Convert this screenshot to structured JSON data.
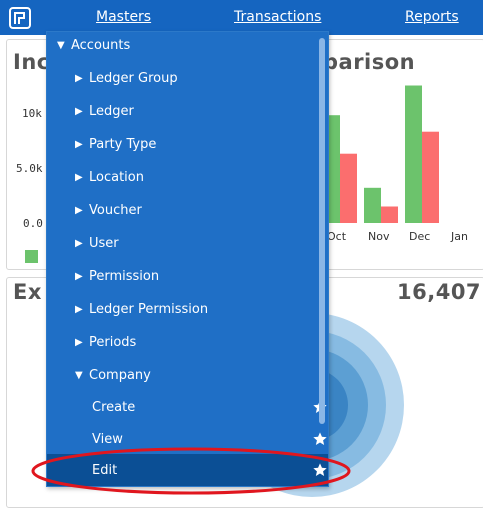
{
  "nav": {
    "masters_label": "Masters",
    "transactions_label": "Transactions",
    "reports_label": "Reports"
  },
  "dashboard": {
    "income_title_left": "Inc",
    "income_title_right": "parison",
    "expense_title_left": "Ex",
    "expense_value": "16,407",
    "y_ticks": [
      "10k",
      "5.0k",
      "0.0"
    ],
    "months": [
      "Oct",
      "Nov",
      "Dec",
      "Jan"
    ]
  },
  "chart_data": {
    "type": "bar",
    "categories": [
      "Oct",
      "Nov",
      "Dec",
      "Jan"
    ],
    "series": [
      {
        "values": [
          9800,
          3200,
          12500,
          0
        ],
        "color": "#6cc36c"
      },
      {
        "values": [
          6300,
          1500,
          8300,
          0
        ],
        "color": "#fb6e6e"
      }
    ],
    "yticks": [
      "10k",
      "5.0k",
      "0.0"
    ],
    "ylim": [
      0,
      13000
    ]
  },
  "menu": {
    "accounts_label": "Accounts",
    "items": [
      {
        "label": "Ledger Group"
      },
      {
        "label": "Ledger"
      },
      {
        "label": "Party Type"
      },
      {
        "label": "Location"
      },
      {
        "label": "Voucher"
      },
      {
        "label": "User"
      },
      {
        "label": "Permission"
      },
      {
        "label": "Ledger Permission"
      },
      {
        "label": "Periods"
      }
    ],
    "company_label": "Company",
    "company_items": [
      {
        "label": "Create"
      },
      {
        "label": "View"
      },
      {
        "label": "Edit"
      }
    ]
  },
  "colors": {
    "nav_bg": "#1565c0",
    "menu_bg": "#1f6fc6",
    "menu_active": "#0b4f95",
    "highlight_ring": "#e0161e"
  }
}
